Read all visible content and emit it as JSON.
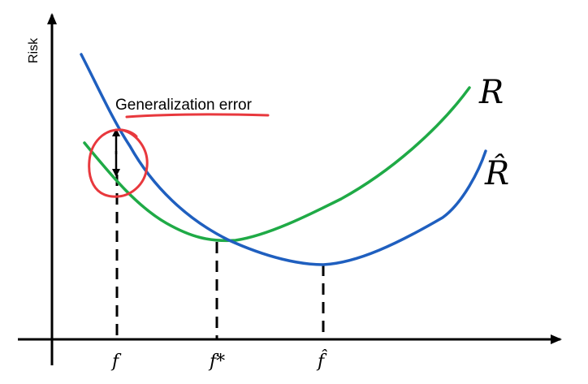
{
  "axes": {
    "y_label": "Risk"
  },
  "curves": {
    "true_risk": {
      "label": "R",
      "color": "#1f5fbf"
    },
    "empirical_risk": {
      "label": "R̂",
      "color": "#1faa46"
    }
  },
  "annotation": {
    "text": "Generalization error",
    "highlight_color": "#e8383d"
  },
  "ticks": {
    "f": "f",
    "f_star": "f*",
    "f_hat": "f̂"
  }
}
